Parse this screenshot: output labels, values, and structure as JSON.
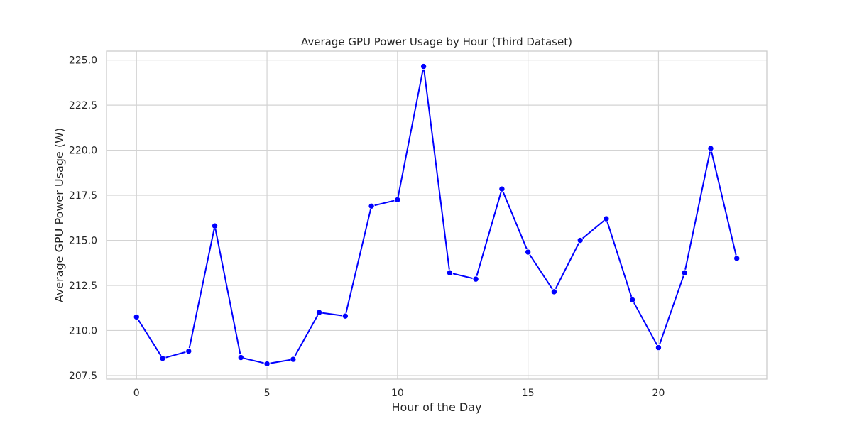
{
  "chart_data": {
    "type": "line",
    "title": "Average GPU Power Usage by Hour (Third Dataset)",
    "xlabel": "Hour of the Day",
    "ylabel": "Average GPU Power Usage (W)",
    "x": [
      0,
      1,
      2,
      3,
      4,
      5,
      6,
      7,
      8,
      9,
      10,
      11,
      12,
      13,
      14,
      15,
      16,
      17,
      18,
      19,
      20,
      21,
      22,
      23
    ],
    "series": [
      {
        "values": [
          210.75,
          208.45,
          208.85,
          215.8,
          208.5,
          208.15,
          208.4,
          211.0,
          210.8,
          216.9,
          217.25,
          224.65,
          213.2,
          212.85,
          217.85,
          214.35,
          212.15,
          215.0,
          216.2,
          211.7,
          209.05,
          213.2,
          220.1,
          214.0
        ],
        "color": "#0000ff"
      }
    ],
    "xlim": [
      -1.15,
      24.15
    ],
    "ylim": [
      207.3,
      225.5
    ],
    "xticks": [
      0,
      5,
      10,
      15,
      20
    ],
    "xtick_labels": [
      "0",
      "5",
      "10",
      "15",
      "20"
    ],
    "yticks": [
      207.5,
      210.0,
      212.5,
      215.0,
      217.5,
      220.0,
      222.5,
      225.0
    ],
    "ytick_labels": [
      "207.5",
      "210.0",
      "212.5",
      "215.0",
      "217.5",
      "220.0",
      "222.5",
      "225.0"
    ],
    "grid": true,
    "legend": false
  }
}
